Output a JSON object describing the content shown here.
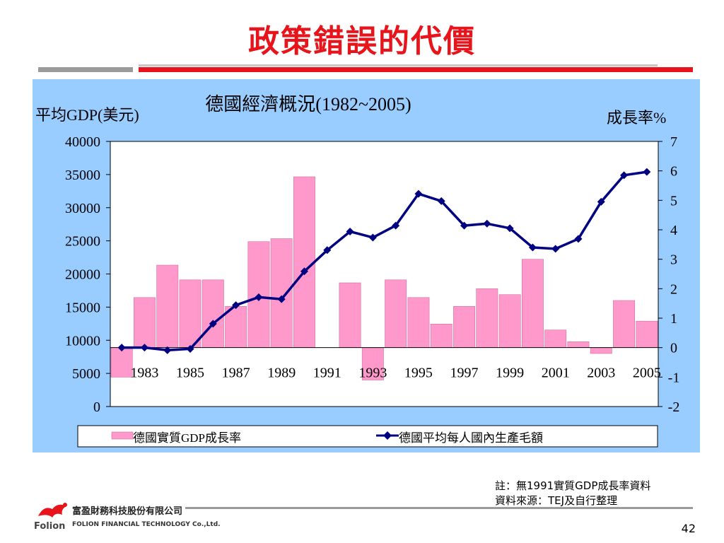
{
  "slide": {
    "title": "政策錯誤的代價",
    "note_line1": "註：無1991實質GDP成長率資料",
    "note_line2": "資料來源：TEJ及自行整理",
    "company_cn": "富盈財務科技股份有限公司",
    "company_en": "FOLION FINANCIAL TECHNOLOGY Co.,Ltd.",
    "brand": "Folion",
    "page_number": "42"
  },
  "colors": {
    "title_red": "#e8141b",
    "panel_bg": "#99ccff",
    "bar_fill": "#ff99cc",
    "line_color": "#000080"
  },
  "chart_data": {
    "type": "bar+line",
    "title": "德國經濟概況(1982~2005)",
    "ylabel_left": "平均GDP(美元)",
    "ylabel_right": "成長率%",
    "years": [
      1982,
      1983,
      1984,
      1985,
      1986,
      1987,
      1988,
      1989,
      1990,
      1991,
      1992,
      1993,
      1994,
      1995,
      1996,
      1997,
      1998,
      1999,
      2000,
      2001,
      2002,
      2003,
      2004,
      2005
    ],
    "x_tick_labels": [
      "1983",
      "1985",
      "1987",
      "1989",
      "1991",
      "1993",
      "1995",
      "1997",
      "1999",
      "2001",
      "2003",
      "2005"
    ],
    "left_axis": {
      "min": 0,
      "max": 40000,
      "ticks": [
        "40000",
        "35000",
        "30000",
        "25000",
        "20000",
        "15000",
        "10000",
        "5000",
        "0"
      ]
    },
    "right_axis": {
      "min": -2,
      "max": 7,
      "ticks": [
        "7",
        "6",
        "5",
        "4",
        "3",
        "2",
        "1",
        "0",
        "-1",
        "-2"
      ]
    },
    "series": [
      {
        "name": "德國實質GDP成長率",
        "type": "bar",
        "axis": "right",
        "values": [
          -1.0,
          1.7,
          2.8,
          2.3,
          2.3,
          1.4,
          3.6,
          3.7,
          5.8,
          null,
          2.2,
          -1.1,
          2.3,
          1.7,
          0.8,
          1.4,
          2.0,
          1.8,
          3.0,
          0.6,
          0.2,
          -0.2,
          1.6,
          0.9
        ]
      },
      {
        "name": "德國平均每人國內生產毛額",
        "type": "line",
        "axis": "left",
        "values": [
          8900,
          8900,
          8500,
          8700,
          12500,
          15300,
          16500,
          16200,
          20400,
          23600,
          26400,
          25500,
          27300,
          32100,
          31000,
          27300,
          27600,
          26900,
          24000,
          23800,
          25300,
          30900,
          34900,
          35400
        ]
      }
    ],
    "legend_position": "bottom",
    "grid": false
  }
}
